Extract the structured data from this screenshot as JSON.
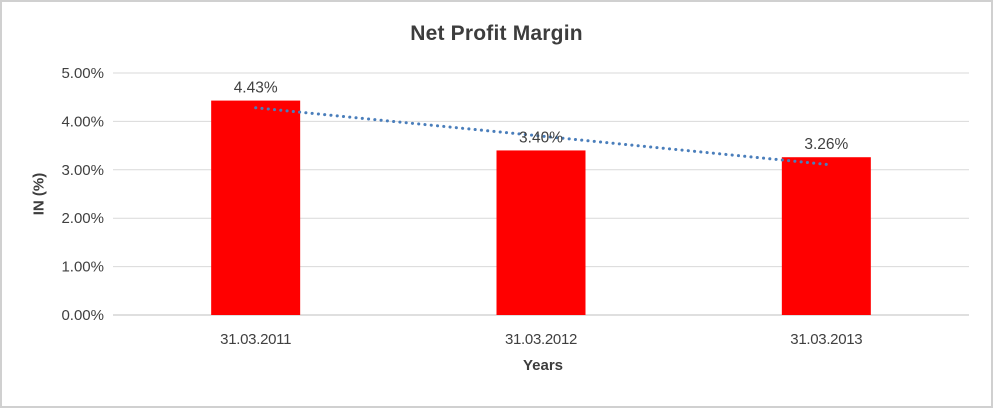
{
  "frame": {
    "background": "#ffffff",
    "border_color": "#d0d0d0"
  },
  "chart_data": {
    "type": "bar",
    "title": "Net Profit Margin",
    "xlabel": "Years",
    "ylabel": "IN (%)",
    "categories": [
      "31.03.2011",
      "31.03.2012",
      "31.03.2013"
    ],
    "values": [
      4.43,
      3.4,
      3.26
    ],
    "data_labels": [
      "4.43%",
      "3.40%",
      "3.26%"
    ],
    "y_ticks": [
      "0.00%",
      "1.00%",
      "2.00%",
      "3.00%",
      "4.00%",
      "5.00%"
    ],
    "ylim": [
      0,
      5
    ],
    "grid": true,
    "legend_position": "none",
    "bar_color": "#ff0000",
    "axis_line_color": "#bfbfbf",
    "gridline_color": "#d9d9d9",
    "label_color": "#404040",
    "title_color": "#3d3d3d",
    "trendline": {
      "type": "linear",
      "style": "dotted",
      "color": "#4a7ebb"
    }
  }
}
